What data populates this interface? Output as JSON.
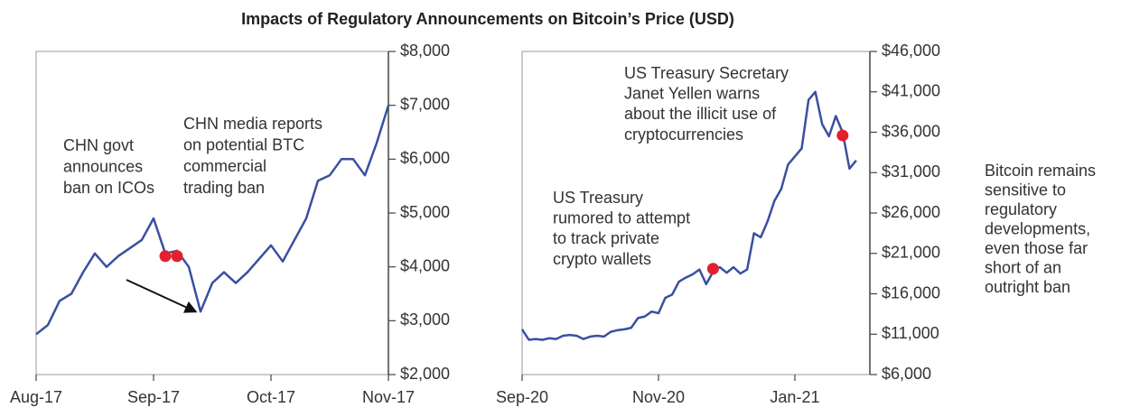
{
  "title": "Impacts of Regulatory Announcements on Bitcoin’s Price (USD)",
  "note": [
    "Bitcoin remains",
    "sensitive to",
    "regulatory",
    "developments,",
    "even those far",
    "short of an",
    "outright ban"
  ],
  "chart_data": [
    {
      "type": "line",
      "categories": [
        "Aug-17",
        null,
        null,
        null,
        null,
        null,
        null,
        null,
        null,
        null,
        "Sep-17",
        null,
        null,
        null,
        null,
        null,
        null,
        null,
        null,
        null,
        "Oct-17",
        null,
        null,
        null,
        null,
        null,
        null,
        null,
        null,
        null,
        "Nov-17"
      ],
      "series": [
        {
          "color": "#3a4fa0",
          "values": [
            2750,
            2920,
            3370,
            3500,
            3900,
            4250,
            4000,
            4200,
            4350,
            4500,
            4900,
            4250,
            4300,
            4000,
            3170,
            3700,
            3900,
            3700,
            3900,
            4150,
            4400,
            4100,
            4500,
            4900,
            5600,
            5700,
            6000,
            6000,
            5700,
            6300,
            7000
          ]
        },
        {
          "color": "#e5202e",
          "style": "dot",
          "values": [
            null,
            null,
            null,
            null,
            null,
            null,
            null,
            null,
            null,
            null,
            null,
            4200,
            4200,
            null,
            null,
            null,
            null,
            null,
            null,
            null,
            null,
            null,
            null,
            null,
            null,
            null,
            null,
            null,
            null,
            null,
            null
          ]
        }
      ],
      "ylim": [
        2000,
        8000
      ],
      "yticks": [
        {
          "value": 2000,
          "label": "$2,000"
        },
        {
          "value": 3000,
          "label": "$3,000"
        },
        {
          "value": 4000,
          "label": "$4,000"
        },
        {
          "value": 5000,
          "label": "$5,000"
        },
        {
          "value": 6000,
          "label": "$6,000"
        },
        {
          "value": 7000,
          "label": "$7,000"
        },
        {
          "value": 8000,
          "label": "$8,000"
        }
      ],
      "annotations": [
        {
          "lines": [
            "CHN govt",
            "announces",
            "ban on ICOs"
          ]
        },
        {
          "lines": [
            "CHN media reports",
            "on potential BTC",
            "commercial",
            "trading ban"
          ]
        }
      ]
    },
    {
      "type": "line",
      "categories": [
        "Sep-20",
        null,
        null,
        null,
        null,
        null,
        null,
        null,
        null,
        null,
        null,
        null,
        null,
        null,
        null,
        null,
        null,
        null,
        null,
        null,
        "Nov-20",
        null,
        null,
        null,
        null,
        null,
        null,
        null,
        null,
        null,
        null,
        null,
        null,
        null,
        null,
        null,
        null,
        null,
        null,
        null,
        "Jan-21",
        null,
        null,
        null,
        null,
        null,
        null,
        null,
        null,
        null,
        null,
        null
      ],
      "series": [
        {
          "color": "#3a4fa0",
          "values": [
            11600,
            10300,
            10400,
            10300,
            10500,
            10400,
            10800,
            10900,
            10800,
            10400,
            10700,
            10800,
            10700,
            11300,
            11500,
            11600,
            11800,
            13000,
            13200,
            13800,
            13600,
            15500,
            15900,
            17500,
            18000,
            18400,
            19000,
            17200,
            18700,
            19300,
            18600,
            19300,
            18500,
            19000,
            23500,
            23000,
            25000,
            27500,
            29000,
            32000,
            33000,
            34000,
            40000,
            41000,
            37000,
            35500,
            38000,
            36000,
            31500,
            32500,
            null,
            null
          ]
        },
        {
          "color": "#e5202e",
          "style": "dot",
          "values": [
            null,
            null,
            null,
            null,
            null,
            null,
            null,
            null,
            null,
            null,
            null,
            null,
            null,
            null,
            null,
            null,
            null,
            null,
            null,
            null,
            null,
            null,
            null,
            null,
            null,
            null,
            null,
            null,
            19100,
            null,
            null,
            null,
            null,
            null,
            null,
            null,
            null,
            null,
            null,
            null,
            null,
            null,
            null,
            null,
            null,
            null,
            null,
            35600,
            null,
            null,
            null,
            null
          ]
        }
      ],
      "ylim": [
        6000,
        46000
      ],
      "yticks": [
        {
          "value": 6000,
          "label": "$6,000"
        },
        {
          "value": 11000,
          "label": "$11,000"
        },
        {
          "value": 16000,
          "label": "$16,000"
        },
        {
          "value": 21000,
          "label": "$21,000"
        },
        {
          "value": 26000,
          "label": "$26,000"
        },
        {
          "value": 31000,
          "label": "$31,000"
        },
        {
          "value": 36000,
          "label": "$36,000"
        },
        {
          "value": 41000,
          "label": "$41,000"
        },
        {
          "value": 46000,
          "label": "$46,000"
        }
      ],
      "annotations": [
        {
          "lines": [
            "US Treasury Secretary",
            "Janet Yellen warns",
            "about the illicit use of",
            "cryptocurrencies"
          ]
        },
        {
          "lines": [
            "US Treasury",
            "rumored to attempt",
            "to track private",
            "crypto wallets"
          ]
        }
      ]
    }
  ]
}
